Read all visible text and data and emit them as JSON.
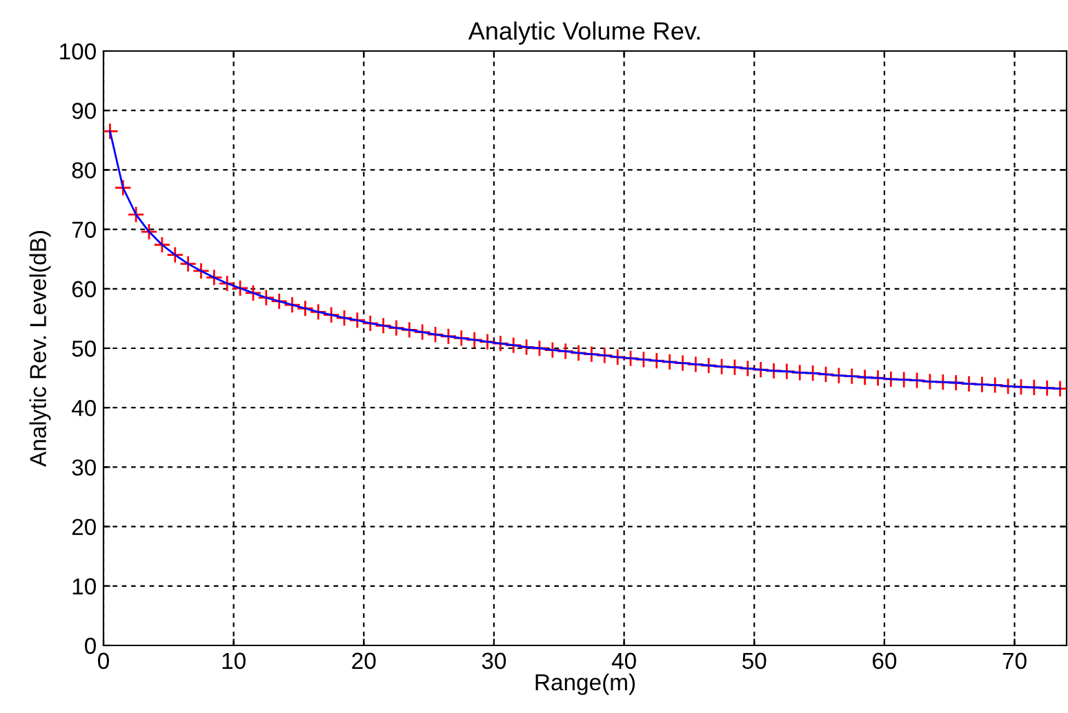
{
  "chart_data": {
    "type": "line",
    "title": "Analytic Volume Rev.",
    "xlabel": "Range(m)",
    "ylabel": "Analytic Rev. Level(dB)",
    "x": [
      0.5,
      1.5,
      2.5,
      3.5,
      4.5,
      5.5,
      6.5,
      7.5,
      8.5,
      9.5,
      10.5,
      11.5,
      12.5,
      13.5,
      14.5,
      15.5,
      16.5,
      17.5,
      18.5,
      19.5,
      20.5,
      21.5,
      22.5,
      23.5,
      24.5,
      25.5,
      26.5,
      27.5,
      28.5,
      29.5,
      30.5,
      31.5,
      32.5,
      33.5,
      34.5,
      35.5,
      36.5,
      37.5,
      38.5,
      39.5,
      40.5,
      41.5,
      42.5,
      43.5,
      44.5,
      45.5,
      46.5,
      47.5,
      48.5,
      49.5,
      50.5,
      51.5,
      52.5,
      53.5,
      54.5,
      55.5,
      56.5,
      57.5,
      58.5,
      59.5,
      60.5,
      61.5,
      62.5,
      63.5,
      64.5,
      65.5,
      66.5,
      67.5,
      68.5,
      69.5,
      70.5,
      71.5,
      72.5,
      73.5
    ],
    "series": [
      {
        "color": "#0000ff",
        "marker": "none",
        "values": [
          86.5,
          77.0,
          72.5,
          69.6,
          67.4,
          65.7,
          64.2,
          63.0,
          61.9,
          60.9,
          60.1,
          59.3,
          58.5,
          57.9,
          57.3,
          56.7,
          56.1,
          55.6,
          55.1,
          54.7,
          54.2,
          53.8,
          53.4,
          53.1,
          52.7,
          52.3,
          52.0,
          51.7,
          51.4,
          51.1,
          50.8,
          50.5,
          50.2,
          50.0,
          49.7,
          49.5,
          49.2,
          49.0,
          48.8,
          48.5,
          48.3,
          48.1,
          47.9,
          47.7,
          47.5,
          47.3,
          47.1,
          46.9,
          46.8,
          46.6,
          46.4,
          46.2,
          46.1,
          45.9,
          45.8,
          45.6,
          45.4,
          45.3,
          45.1,
          45.0,
          44.8,
          44.7,
          44.6,
          44.4,
          44.3,
          44.2,
          44.0,
          43.9,
          43.8,
          43.6,
          43.5,
          43.4,
          43.3,
          43.2
        ]
      },
      {
        "type": "scatter",
        "color": "#ff0000",
        "marker": "cross",
        "values": [
          86.5,
          77.0,
          72.5,
          69.6,
          67.4,
          65.7,
          64.2,
          63.0,
          61.9,
          60.9,
          60.1,
          59.3,
          58.5,
          57.9,
          57.3,
          56.7,
          56.1,
          55.6,
          55.1,
          54.7,
          54.2,
          53.8,
          53.4,
          53.1,
          52.7,
          52.3,
          52.0,
          51.7,
          51.4,
          51.1,
          50.8,
          50.5,
          50.2,
          50.0,
          49.7,
          49.5,
          49.2,
          49.0,
          48.8,
          48.5,
          48.3,
          48.1,
          47.9,
          47.7,
          47.5,
          47.3,
          47.1,
          46.9,
          46.8,
          46.6,
          46.4,
          46.2,
          46.1,
          45.9,
          45.8,
          45.6,
          45.4,
          45.3,
          45.1,
          45.0,
          44.8,
          44.7,
          44.6,
          44.4,
          44.3,
          44.2,
          44.0,
          43.9,
          43.8,
          43.6,
          43.5,
          43.4,
          43.3,
          43.2
        ]
      }
    ],
    "xlim": [
      0,
      74
    ],
    "xticks": [
      0,
      10,
      20,
      30,
      40,
      50,
      60,
      70
    ],
    "ylim": [
      0,
      100
    ],
    "yticks": [
      0,
      10,
      20,
      30,
      40,
      50,
      60,
      70,
      80,
      90,
      100
    ],
    "grid": true,
    "line_style": "solid"
  }
}
